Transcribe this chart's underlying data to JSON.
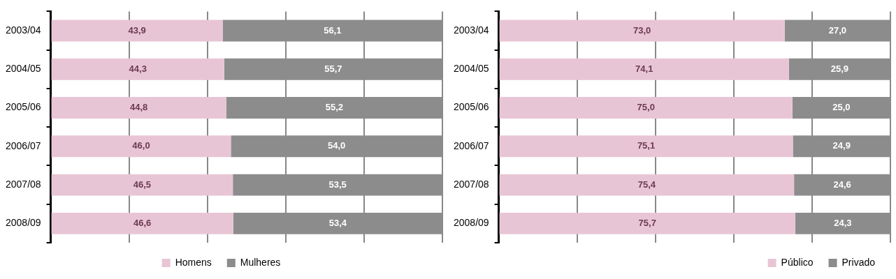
{
  "chart_data": [
    {
      "type": "bar",
      "orientation": "horizontal",
      "stacked": true,
      "categories": [
        "2003/04",
        "2004/05",
        "2005/06",
        "2006/07",
        "2007/08",
        "2008/09"
      ],
      "series": [
        {
          "name": "Homens",
          "color": "#e8c5d5",
          "values": [
            43.9,
            44.3,
            44.8,
            46.0,
            46.5,
            46.6
          ],
          "value_labels": [
            "43,9",
            "44,3",
            "44,8",
            "46,0",
            "46,5",
            "46,6"
          ]
        },
        {
          "name": "Mulheres",
          "color": "#8c8c8c",
          "values": [
            56.1,
            55.7,
            55.2,
            54.0,
            53.5,
            53.4
          ],
          "value_labels": [
            "56,1",
            "55,7",
            "55,2",
            "54,0",
            "53,5",
            "53,4"
          ]
        }
      ],
      "grid": "x",
      "tick_labels": "y",
      "legend": "bottom"
    },
    {
      "type": "bar",
      "orientation": "horizontal",
      "stacked": true,
      "categories": [
        "2003/04",
        "2004/05",
        "2005/06",
        "2006/07",
        "2007/08",
        "2008/09"
      ],
      "series": [
        {
          "name": "Público",
          "color": "#e8c5d5",
          "values": [
            73.0,
            74.1,
            75.0,
            75.1,
            75.4,
            75.7
          ],
          "value_labels": [
            "73,0",
            "74,1",
            "75,0",
            "75,1",
            "75,4",
            "75,7"
          ]
        },
        {
          "name": "Privado",
          "color": "#8c8c8c",
          "values": [
            27.0,
            25.9,
            25.0,
            24.9,
            24.6,
            24.3
          ],
          "value_labels": [
            "27,0",
            "25,9",
            "25,0",
            "24,9",
            "24,6",
            "24,3"
          ]
        }
      ],
      "grid": "x",
      "tick_labels": "y",
      "legend": "bottom right"
    }
  ]
}
